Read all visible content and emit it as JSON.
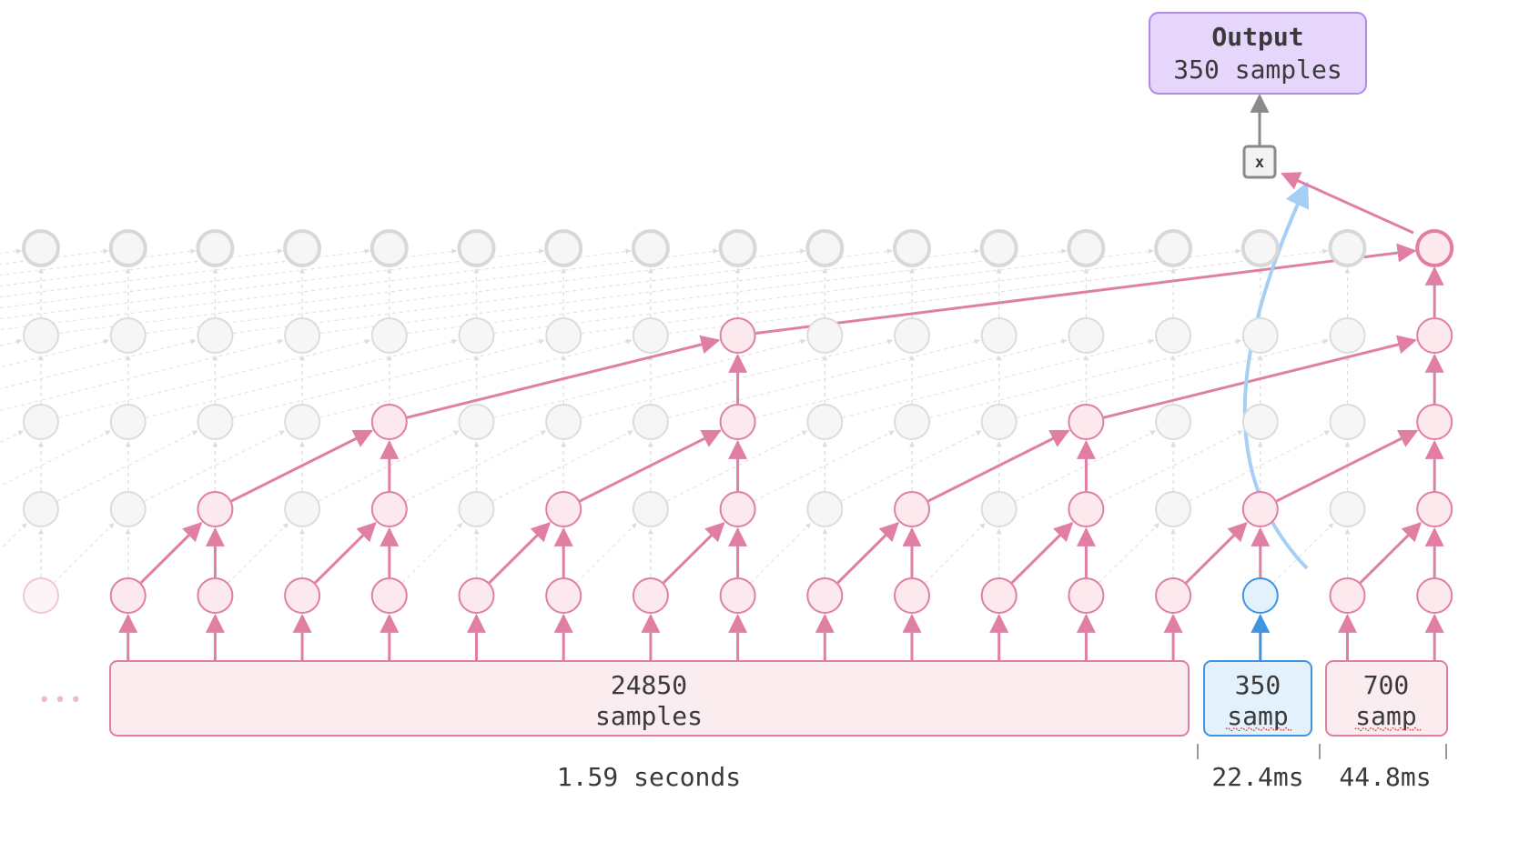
{
  "output_box": {
    "title": "Output",
    "subtitle": "350 samples"
  },
  "multiply_node": {
    "label": "x"
  },
  "input_blocks": [
    {
      "line1": "24850",
      "line2": "samples"
    },
    {
      "line1": "350",
      "line2": "samp"
    },
    {
      "line1": "700",
      "line2": "samp"
    }
  ],
  "time_axis": {
    "segment1": "1.59 seconds",
    "segment2": "22.4ms",
    "segment3": "44.8ms"
  },
  "ellipsis": "•••",
  "colors": {
    "active": "#e07fa3",
    "active_fill": "#fbe9ee",
    "inactive": "#dcdcdc",
    "inactive_fill": "#f6f6f6",
    "current": "#3f93e0",
    "current_fill": "#e3f1fc",
    "current_arrow": "#a6cff5",
    "output_fill": "#e6d6fb",
    "output_stroke": "#b08ae8",
    "mult": "#8a8a8a"
  }
}
